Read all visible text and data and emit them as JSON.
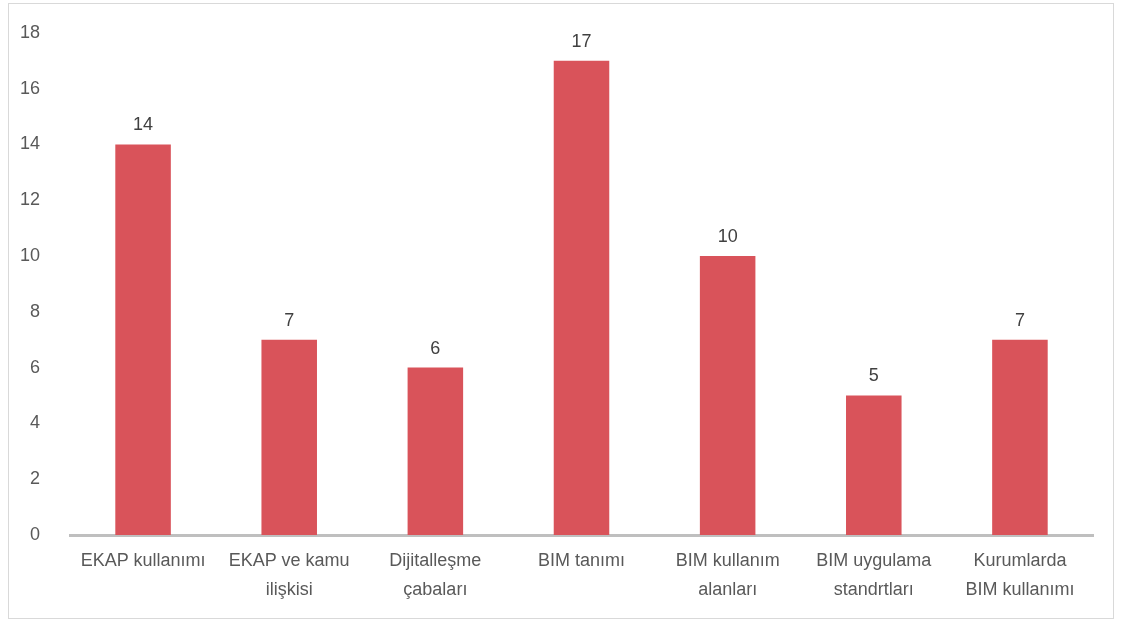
{
  "chart_data": {
    "type": "bar",
    "categories": [
      "EKAP kullanımı",
      "EKAP ve kamu ilişkisi",
      "Dijitalleşme çabaları",
      "BIM tanımı",
      "BIM kullanım alanları",
      "BIM uygulama standrtları",
      "Kurumlarda BIM kullanımı"
    ],
    "values": [
      14,
      7,
      6,
      17,
      10,
      5,
      7
    ],
    "color": "#d9535a",
    "ylim": [
      0,
      18
    ],
    "yticks": [
      0,
      2,
      4,
      6,
      8,
      10,
      12,
      14,
      16,
      18
    ],
    "data_labels": true
  }
}
